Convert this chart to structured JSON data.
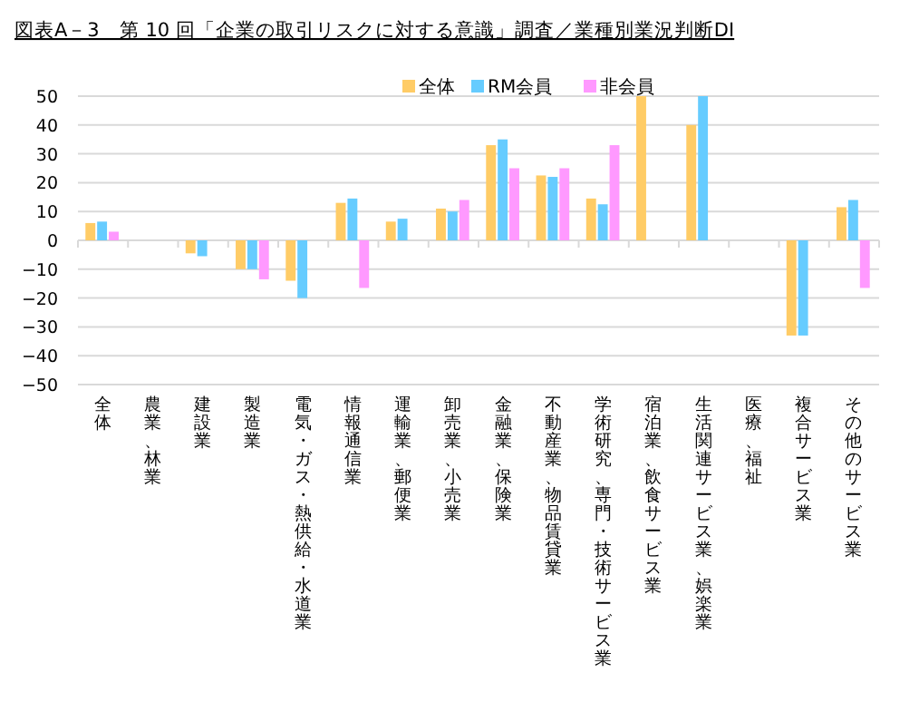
{
  "chart_data": {
    "type": "bar",
    "title": "図表A－3　第 10 回「企業の取引リスクに対する意識」調査／業種別業況判断DI",
    "categories": [
      "全体",
      "農業、林業",
      "建設業",
      "製造業",
      "電気・ガス・熱供給・水道業",
      "情報通信業",
      "運輸業、郵便業",
      "卸売業、小売業",
      "金融業、保険業",
      "不動産業、物品賃貸業",
      "学術研究、専門・技術サービス業",
      "宿泊業、飲食サービス業",
      "生活関連サービス業、娯楽業",
      "医療、福祉",
      "複合サービス業",
      "その他のサービス業"
    ],
    "series": [
      {
        "name": "全体",
        "color": "#ffcc66",
        "values": [
          6,
          null,
          -4.5,
          -10,
          -14,
          13,
          6.5,
          11,
          33,
          22.5,
          14.5,
          50,
          40,
          null,
          -33,
          11.5
        ]
      },
      {
        "name": "RM会員",
        "color": "#66ccff",
        "values": [
          6.5,
          null,
          -5.5,
          -10,
          -20,
          14.5,
          7.5,
          10,
          35,
          22,
          12.5,
          null,
          50,
          null,
          -33,
          14
        ]
      },
      {
        "name": "非会員",
        "color": "#ff99ff",
        "values": [
          3,
          null,
          null,
          -13.5,
          null,
          -16.5,
          null,
          14,
          25,
          25,
          33,
          null,
          null,
          null,
          null,
          -16.5
        ]
      }
    ],
    "ylim": [
      -50,
      50
    ],
    "yticks": [
      -50,
      -40,
      -30,
      -20,
      -10,
      0,
      10,
      20,
      30,
      40,
      50
    ],
    "grid": "y",
    "legend": "top"
  }
}
